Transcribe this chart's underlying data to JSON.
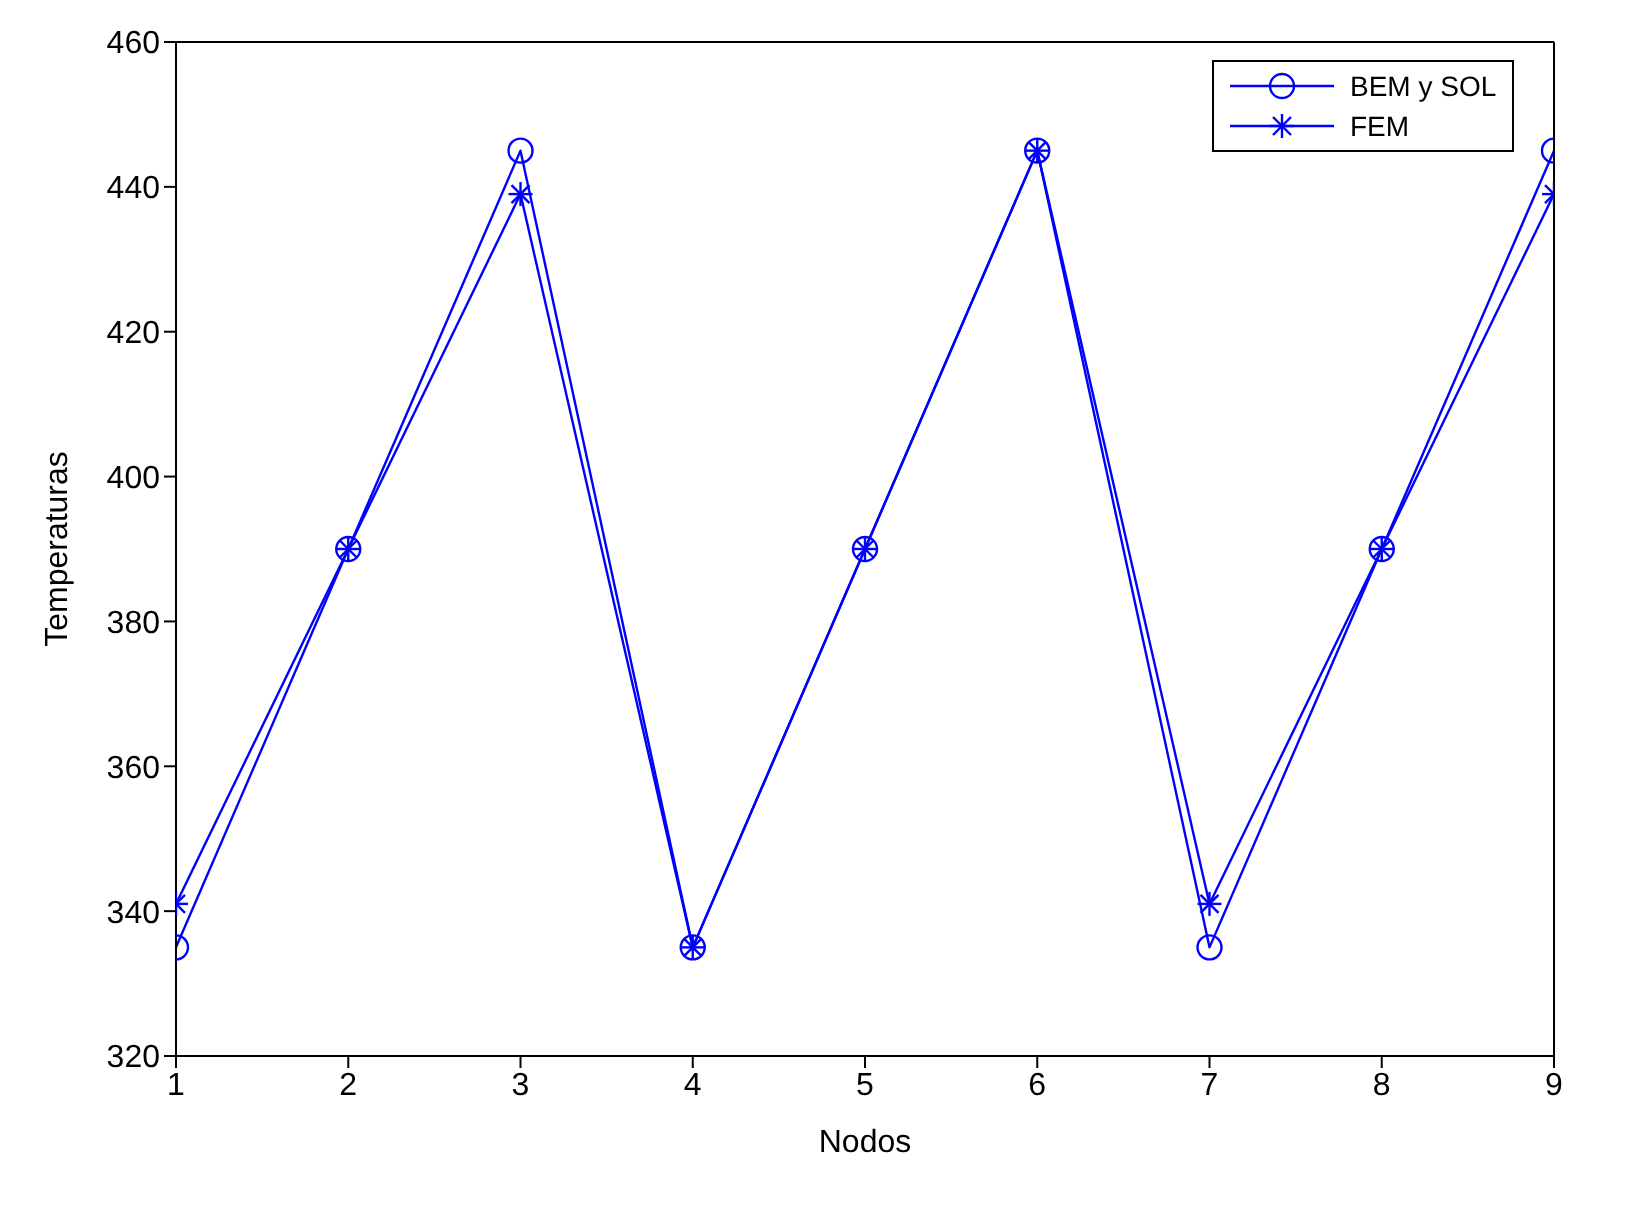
{
  "chart_data": {
    "type": "line",
    "xlabel": "Nodos",
    "ylabel": "Temperaturas",
    "x": [
      1,
      2,
      3,
      4,
      5,
      6,
      7,
      8,
      9
    ],
    "series": [
      {
        "name": "BEM y SOL",
        "color": "#0000ff",
        "marker": "circle",
        "values": [
          335,
          390,
          445,
          335,
          390,
          445,
          335,
          390,
          445
        ]
      },
      {
        "name": "FEM",
        "color": "#0000ff",
        "marker": "cross",
        "values": [
          341,
          390,
          439,
          335,
          390,
          445,
          341,
          390,
          439
        ]
      }
    ],
    "xlim": [
      1,
      9
    ],
    "xticks": [
      1,
      2,
      3,
      4,
      5,
      6,
      7,
      8,
      9
    ],
    "ylim": [
      320,
      460
    ],
    "yticks": [
      320,
      340,
      360,
      380,
      400,
      420,
      440,
      460
    ],
    "grid": false,
    "legend": "top right",
    "line_style": "solid"
  }
}
